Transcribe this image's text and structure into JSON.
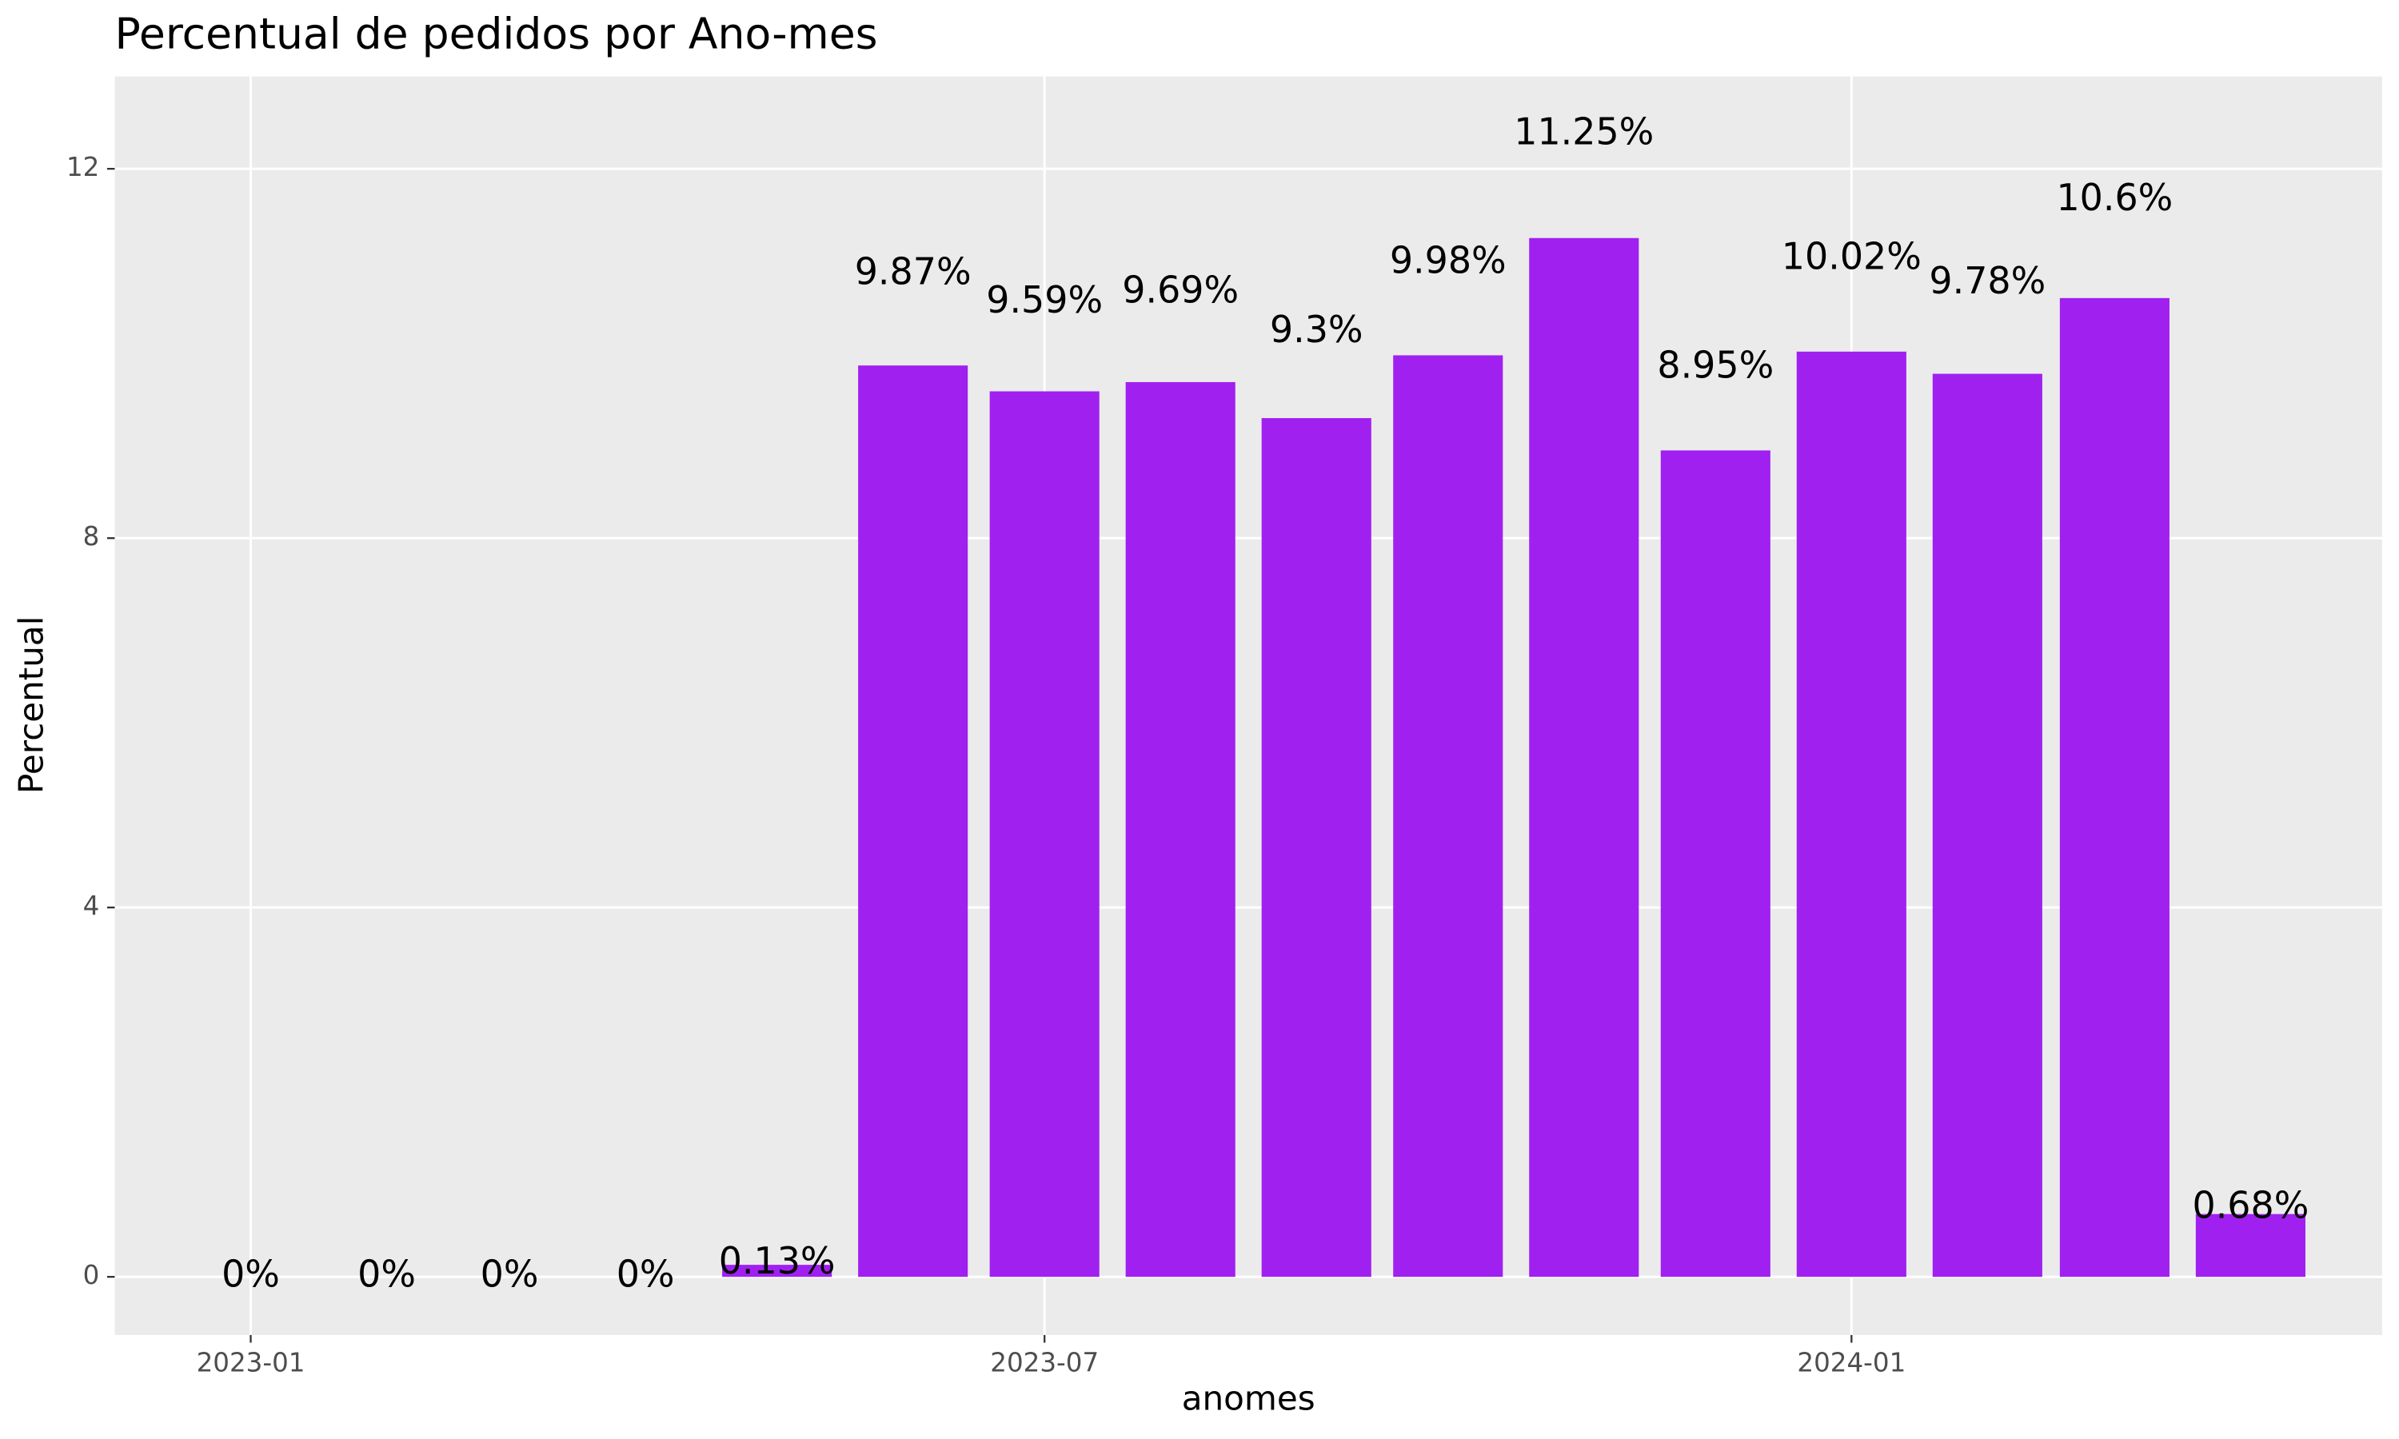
{
  "chart_data": {
    "type": "bar",
    "title": "Percentual de pedidos por Ano-mes",
    "x_label": "anomes",
    "y_label": "Percentual",
    "x": [
      "2023-01",
      "2023-02",
      "2023-03",
      "2023-04",
      "2023-05",
      "2023-06",
      "2023-07",
      "2023-08",
      "2023-09",
      "2023-10",
      "2023-11",
      "2023-12",
      "2024-01",
      "2024-02",
      "2024-03",
      "2024-04"
    ],
    "values": [
      0,
      0,
      0,
      0,
      0.13,
      9.87,
      9.59,
      9.69,
      9.3,
      9.98,
      11.25,
      8.95,
      10.02,
      9.78,
      10.6,
      0.68
    ],
    "value_labels": [
      "0%",
      "0%",
      "0%",
      "0%",
      "0.13%",
      "9.87%",
      "9.59%",
      "9.69%",
      "9.3%",
      "9.98%",
      "11.25%",
      "8.95%",
      "10.02%",
      "9.78%",
      "10.6%",
      "0.68%"
    ],
    "color": "#A020F0",
    "xlim": [
      "2022-12",
      "2024-05"
    ],
    "xticks": [
      "2023-01",
      "2023-07",
      "2024-01"
    ],
    "ylim": [
      -0.63,
      13.0
    ],
    "yticks": [
      0,
      4,
      8,
      12
    ],
    "grid": true
  }
}
